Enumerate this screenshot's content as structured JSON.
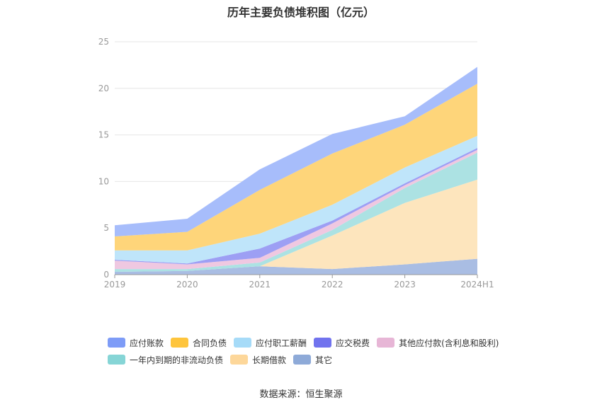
{
  "title": "历年主要负债堆积图（亿元）",
  "source": "数据来源：恒生聚源",
  "chart_data": {
    "type": "area",
    "stacked": true,
    "categories": [
      "2019",
      "2020",
      "2021",
      "2022",
      "2023",
      "2024H1"
    ],
    "ylim": [
      0,
      25
    ],
    "yticks": [
      0,
      5,
      10,
      15,
      20,
      25
    ],
    "grid": true,
    "legend_position": "bottom",
    "series": [
      {
        "name": "其它",
        "color": "#a9bde3",
        "values": [
          0.3,
          0.4,
          0.9,
          0.6,
          1.1,
          1.7
        ]
      },
      {
        "name": "长期借款",
        "color": "#fde5bd",
        "values": [
          0,
          0,
          0,
          3.6,
          6.6,
          8.5
        ]
      },
      {
        "name": "一年内到期的非流动负债",
        "color": "#ace2e3",
        "values": [
          0.3,
          0.2,
          0.4,
          0.6,
          1.6,
          2.9
        ]
      },
      {
        "name": "其他应付款(含利息和股利)",
        "color": "#efc8e1",
        "values": [
          0.9,
          0.5,
          0.5,
          0.7,
          0.3,
          0.3
        ]
      },
      {
        "name": "应交税费",
        "color": "#9d9ff4",
        "values": [
          0.1,
          0.1,
          1.0,
          0.3,
          0.2,
          0.2
        ]
      },
      {
        "name": "应付职工薪酬",
        "color": "#bfe5fa",
        "values": [
          1.0,
          1.4,
          1.6,
          1.7,
          1.7,
          1.3
        ]
      },
      {
        "name": "合同负债",
        "color": "#fed57a",
        "values": [
          1.5,
          2.0,
          4.7,
          5.5,
          4.6,
          5.6
        ]
      },
      {
        "name": "应付账款",
        "color": "#a7bdfb",
        "values": [
          1.2,
          1.4,
          2.2,
          2.1,
          0.9,
          1.8
        ]
      }
    ]
  },
  "legend": [
    {
      "name": "应付账款",
      "color": "#7e9cf7"
    },
    {
      "name": "合同负债",
      "color": "#fec53d"
    },
    {
      "name": "应付职工薪酬",
      "color": "#a6dbf8"
    },
    {
      "name": "应交税费",
      "color": "#7173ee"
    },
    {
      "name": "其他应付款(含利息和股利)",
      "color": "#e7b6d6"
    },
    {
      "name": "一年内到期的非流动负债",
      "color": "#86d5d6"
    },
    {
      "name": "长期借款",
      "color": "#fdd79a"
    },
    {
      "name": "其它",
      "color": "#8eaad8"
    }
  ]
}
